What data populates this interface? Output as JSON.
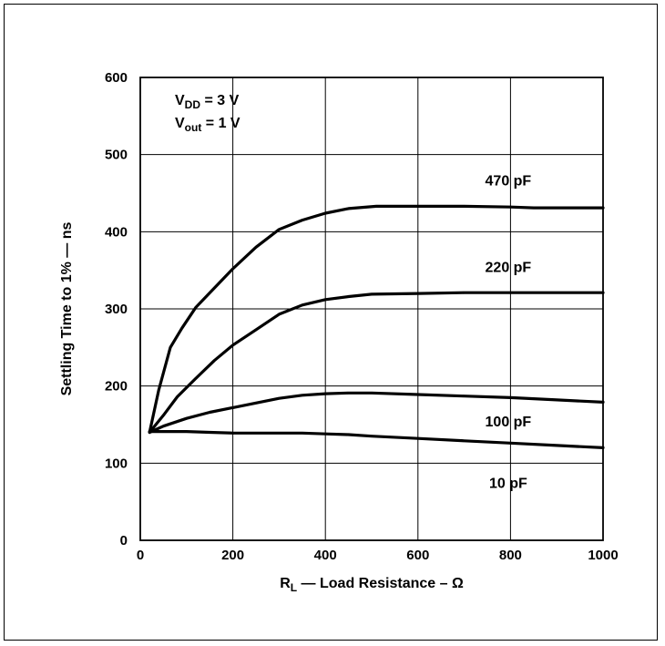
{
  "chart_data": {
    "type": "line",
    "title": "",
    "xlabel": {
      "main": "R",
      "sub": "L",
      "rest": " — Load Resistance – Ω"
    },
    "ylabel": "Settling Time to 1% — ns",
    "xlim": [
      0,
      1000
    ],
    "ylim": [
      0,
      600
    ],
    "xticks": [
      0,
      200,
      400,
      600,
      800,
      1000
    ],
    "yticks": [
      0,
      100,
      200,
      300,
      400,
      500,
      600
    ],
    "grid": true,
    "conditions": [
      {
        "main": "V",
        "sub": "DD",
        "rest": " = 3 V"
      },
      {
        "main": "V",
        "sub": "out",
        "rest": " = 1 V"
      }
    ],
    "series": [
      {
        "name": "470 pF",
        "label_at": [
          795,
          467
        ],
        "x": [
          20,
          40,
          65,
          90,
          120,
          160,
          200,
          250,
          300,
          350,
          400,
          450,
          510,
          600,
          700,
          800,
          850,
          1000
        ],
        "y": [
          140,
          195,
          250,
          275,
          302,
          327,
          352,
          380,
          403,
          415,
          424,
          430,
          433,
          433,
          433,
          432,
          431,
          431
        ]
      },
      {
        "name": "220 pF",
        "label_at": [
          795,
          355
        ],
        "x": [
          20,
          50,
          80,
          120,
          160,
          200,
          250,
          300,
          350,
          400,
          450,
          500,
          600,
          700,
          800,
          900,
          1000
        ],
        "y": [
          140,
          162,
          186,
          210,
          233,
          253,
          273,
          293,
          305,
          312,
          316,
          319,
          320,
          321,
          321,
          321,
          321
        ]
      },
      {
        "name": "100 pF",
        "label_at": [
          795,
          155
        ],
        "x": [
          20,
          50,
          100,
          150,
          200,
          250,
          300,
          350,
          400,
          450,
          500,
          600,
          700,
          800,
          900,
          1000
        ],
        "y": [
          140,
          148,
          158,
          166,
          172,
          178,
          184,
          188,
          190,
          191,
          191,
          189,
          187,
          185,
          182,
          179
        ]
      },
      {
        "name": "10 pF",
        "label_at": [
          795,
          75
        ],
        "x": [
          20,
          100,
          150,
          200,
          250,
          300,
          350,
          400,
          450,
          500,
          600,
          700,
          800,
          900,
          1000
        ],
        "y": [
          141,
          141,
          140,
          139,
          139,
          139,
          139,
          138,
          137,
          135,
          132,
          129,
          126,
          123,
          120
        ]
      }
    ]
  }
}
